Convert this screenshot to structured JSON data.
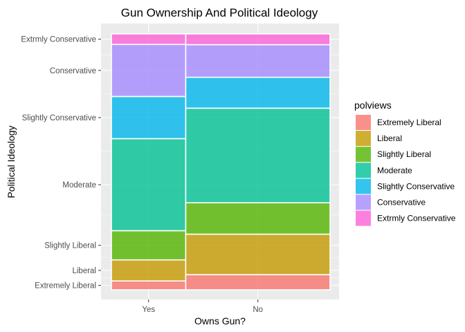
{
  "chart_data": {
    "type": "mosaic",
    "title": "Gun Ownership And Political Ideology",
    "xlabel": "Owns Gun?",
    "ylabel": "Political Ideology",
    "categories": [
      "Yes",
      "No"
    ],
    "category_widths": [
      0.34,
      0.66
    ],
    "series": [
      {
        "name": "Extremely Liberal",
        "color": "#F8766D",
        "values": [
          0.036,
          0.062
        ]
      },
      {
        "name": "Liberal",
        "color": "#C49A00",
        "values": [
          0.086,
          0.165
        ]
      },
      {
        "name": "Slightly Liberal",
        "color": "#53B400",
        "values": [
          0.119,
          0.128
        ]
      },
      {
        "name": "Moderate",
        "color": "#00C094",
        "values": [
          0.375,
          0.386
        ]
      },
      {
        "name": "Slightly Conservative",
        "color": "#00B6EB",
        "values": [
          0.172,
          0.126
        ]
      },
      {
        "name": "Conservative",
        "color": "#A58AFF",
        "values": [
          0.212,
          0.133
        ]
      },
      {
        "name": "Extrmly Conservative",
        "color": "#FB61D7",
        "values": [
          0.043,
          0.044
        ]
      }
    ],
    "y_tick_labels": [
      "Extremely Liberal",
      "Liberal",
      "Slightly Liberal",
      "Moderate",
      "Slightly Conservative",
      "Conservative",
      "Extrmly Conservative"
    ],
    "legend": {
      "title": "polviews",
      "position": "right",
      "entries": [
        "Extremely Liberal",
        "Liberal",
        "Slightly Liberal",
        "Moderate",
        "Slightly Conservative",
        "Conservative",
        "Extrmly Conservative"
      ]
    },
    "grid": true,
    "panel_background": "#EBEBEB",
    "tile_alpha": 0.8
  }
}
